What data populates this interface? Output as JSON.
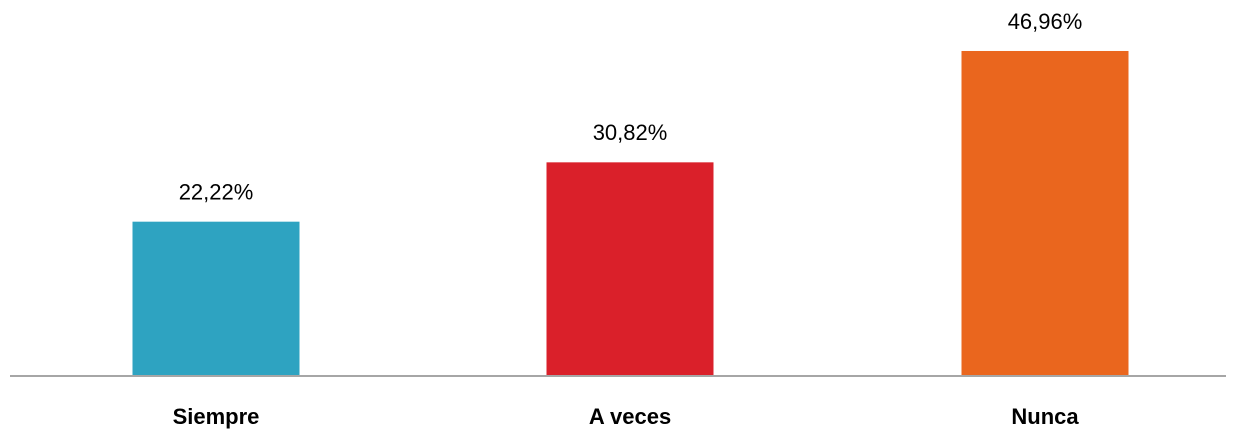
{
  "chart_data": {
    "type": "bar",
    "categories": [
      "Siempre",
      "A veces",
      "Nunca"
    ],
    "values": [
      22.22,
      30.82,
      46.96
    ],
    "value_labels": [
      "22,22%",
      "30,82%",
      "46,96%"
    ],
    "colors": [
      "#2ea3c1",
      "#da202a",
      "#ea661e"
    ]
  }
}
